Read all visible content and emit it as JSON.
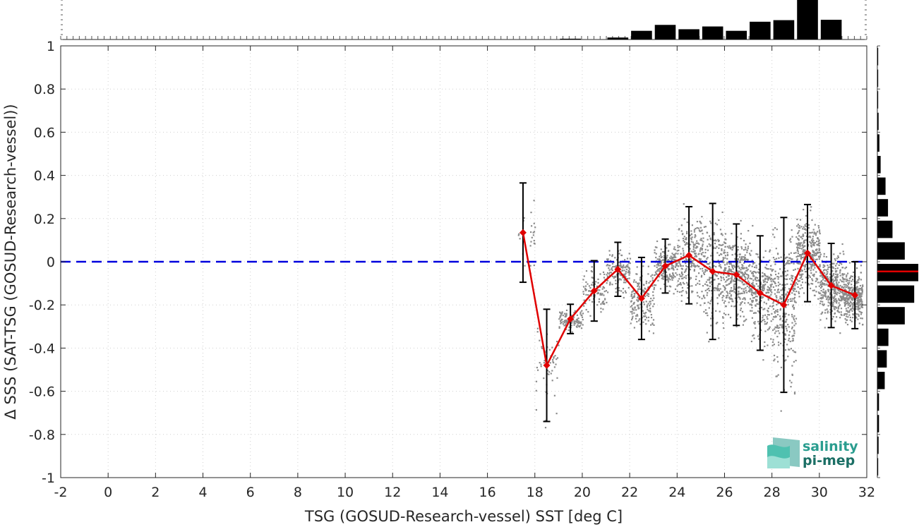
{
  "chart_data": {
    "type": "scatter",
    "xlabel": "TSG (GOSUD-Research-vessel) SST [deg C]",
    "ylabel": "Δ SSS (SAT-TSG (GOSUD-Research-vessel))",
    "xlim": [
      -2,
      32
    ],
    "ylim": [
      -1,
      1
    ],
    "xticks": [
      "-2",
      "0",
      "2",
      "4",
      "6",
      "8",
      "10",
      "12",
      "14",
      "16",
      "18",
      "20",
      "22",
      "24",
      "26",
      "28",
      "30",
      "32"
    ],
    "yticks": [
      "-1",
      "-0.8",
      "-0.6",
      "-0.4",
      "-0.2",
      "0",
      "0.2",
      "0.4",
      "0.6",
      "0.8",
      "1"
    ],
    "grid": true,
    "reference_line": {
      "y": 0,
      "color": "#0000dd",
      "style": "dashed"
    },
    "binned_mean": {
      "color": "#e00000",
      "x": [
        17.5,
        18.5,
        19.5,
        20.5,
        21.5,
        22.5,
        23.5,
        24.5,
        25.5,
        26.5,
        27.5,
        28.5,
        29.5,
        30.5,
        31.5
      ],
      "mean": [
        0.135,
        -0.48,
        -0.265,
        -0.135,
        -0.035,
        -0.17,
        -0.02,
        0.03,
        -0.045,
        -0.06,
        -0.145,
        -0.2,
        0.04,
        -0.11,
        -0.155
      ],
      "std": [
        0.23,
        0.26,
        0.068,
        0.14,
        0.125,
        0.19,
        0.125,
        0.225,
        0.315,
        0.235,
        0.265,
        0.405,
        0.225,
        0.195,
        0.155
      ]
    },
    "scatter_color": "#8c8c8c",
    "top_histogram": {
      "bin_centers": [
        19.5,
        20.5,
        21.5,
        22.5,
        23.5,
        24.5,
        25.5,
        26.5,
        27.5,
        28.5,
        29.5,
        30.5
      ],
      "relative_counts": [
        0.02,
        0.0,
        0.05,
        0.22,
        0.37,
        0.26,
        0.33,
        0.22,
        0.45,
        0.49,
        1.0,
        0.5
      ]
    },
    "right_histogram": {
      "bin_centers": [
        0.95,
        0.85,
        0.75,
        0.65,
        0.55,
        0.45,
        0.35,
        0.25,
        0.15,
        0.05,
        -0.05,
        -0.15,
        -0.25,
        -0.35,
        -0.45,
        -0.55,
        -0.65,
        -0.75,
        -0.85,
        -0.95
      ],
      "relative_counts": [
        0.02,
        0.02,
        0.02,
        0.03,
        0.05,
        0.08,
        0.2,
        0.26,
        0.37,
        0.67,
        1.0,
        0.9,
        0.67,
        0.27,
        0.23,
        0.18,
        0.04,
        0.04,
        0.03,
        0.02
      ],
      "mean_line_y": -0.045,
      "mean_line_color": "#e00000"
    }
  },
  "logo": {
    "line1": "salinity",
    "line2": "pi-mep",
    "color_main": "#2a9d8f",
    "color_dark": "#1b6f65"
  }
}
